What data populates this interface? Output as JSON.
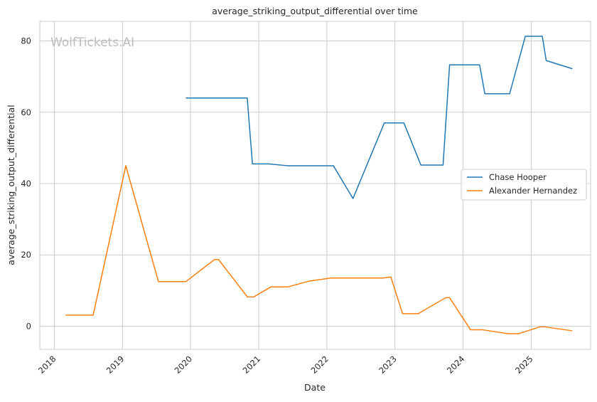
{
  "chart_data": {
    "type": "line",
    "title": "average_striking_output_differential over time",
    "xlabel": "Date",
    "ylabel": "average_striking_output_differential",
    "watermark": "WolfTickets.AI",
    "x_ticks": [
      "2018",
      "2019",
      "2020",
      "2021",
      "2022",
      "2023",
      "2024",
      "2025"
    ],
    "y_ticks": [
      0,
      20,
      40,
      60,
      80
    ],
    "xlim": [
      "2017-10-15",
      "2025-11-15"
    ],
    "ylim": [
      -6.5,
      85.5
    ],
    "grid": true,
    "legend_position": "center-right",
    "series": [
      {
        "name": "Chase Hooper",
        "color": "#1f77b4",
        "points": [
          [
            "2019-12-07",
            64.0
          ],
          [
            "2020-10-31",
            64.0
          ],
          [
            "2020-11-28",
            45.5
          ],
          [
            "2021-02-27",
            45.5
          ],
          [
            "2021-06-05",
            45.0
          ],
          [
            "2022-02-05",
            45.0
          ],
          [
            "2022-05-21",
            35.8
          ],
          [
            "2022-11-05",
            57.0
          ],
          [
            "2023-02-18",
            57.0
          ],
          [
            "2023-05-20",
            45.2
          ],
          [
            "2023-09-16",
            45.2
          ],
          [
            "2023-10-21",
            73.3
          ],
          [
            "2024-03-30",
            73.3
          ],
          [
            "2024-04-27",
            65.2
          ],
          [
            "2024-09-07",
            65.2
          ],
          [
            "2024-11-30",
            81.3
          ],
          [
            "2025-03-01",
            81.3
          ],
          [
            "2025-03-22",
            74.5
          ],
          [
            "2025-08-09",
            72.2
          ]
        ]
      },
      {
        "name": "Alexander Hernandez",
        "color": "#ff7f0e",
        "points": [
          [
            "2018-03-03",
            3.1
          ],
          [
            "2018-07-28",
            3.1
          ],
          [
            "2019-01-19",
            45.0
          ],
          [
            "2019-07-13",
            12.5
          ],
          [
            "2019-12-07",
            12.5
          ],
          [
            "2020-05-09",
            18.7
          ],
          [
            "2020-05-30",
            18.7
          ],
          [
            "2020-11-01",
            8.2
          ],
          [
            "2020-12-05",
            8.2
          ],
          [
            "2021-03-06",
            11.0
          ],
          [
            "2021-06-05",
            11.0
          ],
          [
            "2021-09-25",
            12.6
          ],
          [
            "2022-01-22",
            13.5
          ],
          [
            "2022-10-29",
            13.5
          ],
          [
            "2022-12-10",
            13.8
          ],
          [
            "2023-02-11",
            3.5
          ],
          [
            "2023-05-06",
            3.5
          ],
          [
            "2023-09-30",
            8.0
          ],
          [
            "2023-10-21",
            8.0
          ],
          [
            "2024-02-10",
            -1.0
          ],
          [
            "2024-04-13",
            -1.0
          ],
          [
            "2024-08-31",
            -2.1
          ],
          [
            "2024-10-26",
            -2.1
          ],
          [
            "2025-02-15",
            -0.2
          ],
          [
            "2025-03-15",
            -0.2
          ],
          [
            "2025-08-09",
            -1.3
          ]
        ]
      }
    ]
  }
}
